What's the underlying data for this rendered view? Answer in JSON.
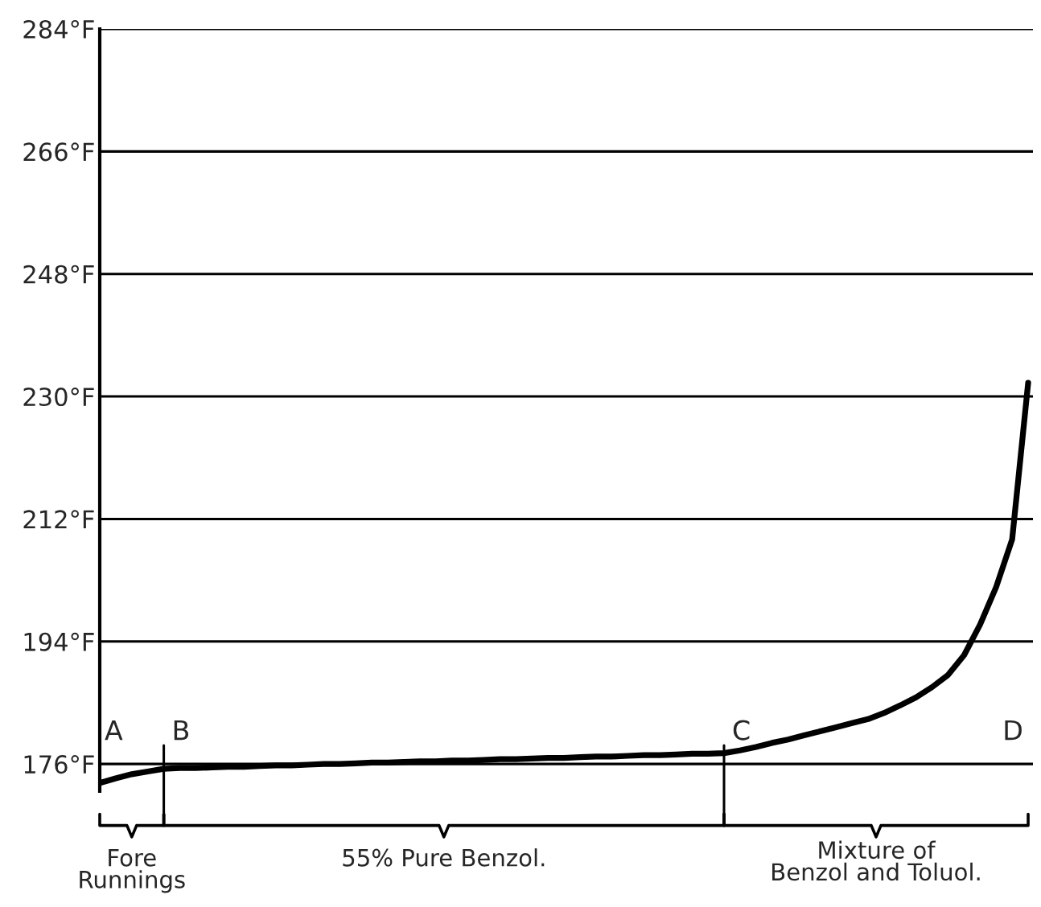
{
  "chart_data": {
    "type": "line",
    "categories": [
      null,
      null,
      null,
      null,
      null,
      null,
      null,
      null,
      null,
      null,
      null,
      null,
      null,
      null,
      null,
      null,
      null,
      null,
      null,
      null,
      null,
      null,
      null,
      null,
      null,
      null,
      null,
      null,
      null,
      null,
      null,
      null,
      null,
      null,
      null,
      null,
      null,
      null,
      null,
      null,
      null,
      null,
      null,
      null,
      null,
      null,
      null,
      null,
      null,
      null,
      null,
      null,
      null,
      null,
      null,
      null,
      null,
      null,
      null
    ],
    "values": [
      173.2,
      173.9,
      174.5,
      174.9,
      175.3,
      175.4,
      175.4,
      175.5,
      175.6,
      175.6,
      175.7,
      175.8,
      175.8,
      175.9,
      176.0,
      176.0,
      176.1,
      176.2,
      176.2,
      176.3,
      176.4,
      176.4,
      176.5,
      176.5,
      176.6,
      176.7,
      176.7,
      176.8,
      176.9,
      176.9,
      177.0,
      177.1,
      177.1,
      177.2,
      177.3,
      177.3,
      177.4,
      177.5,
      177.5,
      177.6,
      178.0,
      178.5,
      179.1,
      179.6,
      180.2,
      180.8,
      181.4,
      182.0,
      182.6,
      183.5,
      184.6,
      185.8,
      187.3,
      189.1,
      192.0,
      196.5,
      202.0,
      209.0,
      232.0
    ],
    "color": "#000000",
    "ylim": [
      172,
      284
    ],
    "yticks": [
      {
        "value": 176,
        "label": "176°F"
      },
      {
        "value": 194,
        "label": "194°F"
      },
      {
        "value": 212,
        "label": "212°F"
      },
      {
        "value": 230,
        "label": "230°F"
      },
      {
        "value": 248,
        "label": "248°F"
      },
      {
        "value": 266,
        "label": "266°F"
      },
      {
        "value": 284,
        "label": "284°F"
      }
    ],
    "grid": "y",
    "tick_labels": "y",
    "annotations": [
      "A",
      "B",
      "C",
      "D",
      "Fore\nRunnings",
      "55% Pure Benzol.",
      "Mixture of\nBenzol and Toluol."
    ]
  }
}
